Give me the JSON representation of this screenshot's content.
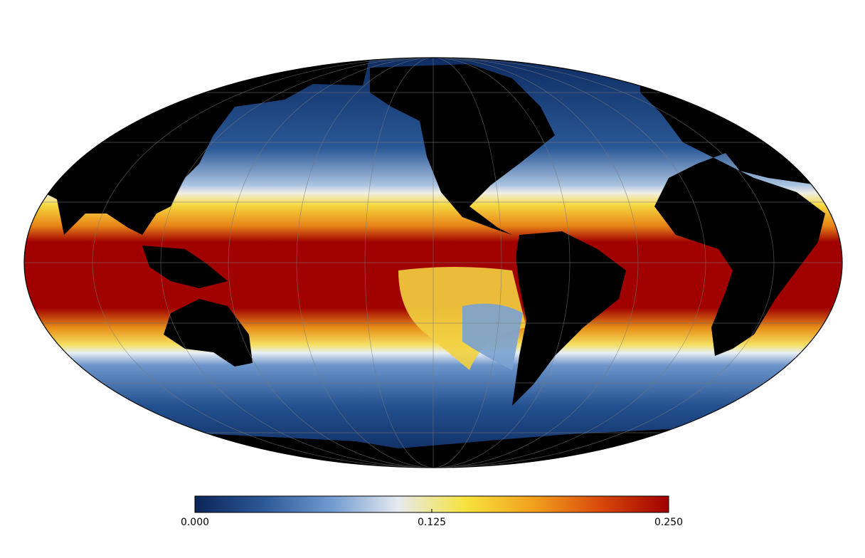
{
  "colorbar": {
    "range": [
      0,
      0.25
    ],
    "ticks": [
      {
        "value": 0,
        "label": "0.000"
      },
      {
        "value": 0.125,
        "label": "0.125"
      },
      {
        "value": 0.25,
        "label": "0.250"
      }
    ],
    "colors": [
      "#0b2558",
      "#2c5796",
      "#6f99cf",
      "#e6eaf0",
      "#f7e33c",
      "#f2a01e",
      "#d8480a",
      "#a00000"
    ]
  }
}
